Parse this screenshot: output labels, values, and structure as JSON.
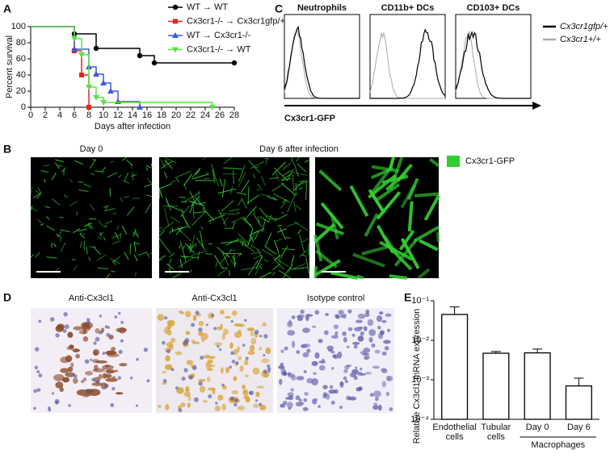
{
  "panel_labels": [
    "A",
    "B",
    "C",
    "D",
    "E"
  ],
  "chart_data": [
    {
      "type": "step",
      "y_label": "Percent survival",
      "x_label": "Days after infection",
      "xlim": [
        0,
        28
      ],
      "xticks": [
        0,
        2,
        4,
        6,
        8,
        10,
        12,
        14,
        16,
        18,
        20,
        22,
        24,
        26,
        28
      ],
      "ylim": [
        0,
        100
      ],
      "yticks": [
        0,
        20,
        40,
        60,
        80,
        100
      ],
      "series": [
        {
          "name": "WT → WT",
          "color": "#000000",
          "marker": "circle",
          "x": [
            0,
            6,
            9,
            15,
            17,
            28
          ],
          "values": [
            100,
            91,
            73,
            64,
            55,
            55
          ]
        },
        {
          "name": "Cx3cr1-/- → Cx3cr1gfp/+",
          "color": "#e8231c",
          "marker": "square",
          "x": [
            0,
            6,
            7,
            8
          ],
          "values": [
            100,
            70,
            40,
            0
          ]
        },
        {
          "name": "WT → Cx3cr1-/-",
          "color": "#3a5bd9",
          "marker": "triangle",
          "x": [
            0,
            6,
            8,
            9,
            10,
            11,
            12,
            15
          ],
          "values": [
            100,
            72,
            50,
            41,
            30,
            20,
            7,
            0
          ]
        },
        {
          "name": "Cx3cr1-/- → WT",
          "color": "#5fe04a",
          "marker": "triangle-down",
          "x": [
            0,
            6,
            7,
            8,
            9,
            10,
            25
          ],
          "values": [
            100,
            85,
            65,
            25,
            12,
            6,
            0
          ]
        }
      ]
    },
    {
      "type": "bar",
      "y_label": "Relative Cx3cl1 mRNA expression",
      "log": true,
      "color": "#ffffff",
      "categories": [
        "Endothelial cells",
        "Tubular cells",
        "Day 0",
        "Day 6"
      ],
      "group_label": "Macrophages",
      "values": [
        0.045,
        0.0047,
        0.0048,
        0.0007
      ],
      "errors": [
        0.025,
        0.0005,
        0.0012,
        0.0004
      ],
      "ylim": [
        0.0001,
        0.1
      ],
      "yticks": [
        {
          "value": 0.0001,
          "label": "10⁻⁴"
        },
        {
          "value": 0.001,
          "label": "10⁻³"
        },
        {
          "value": 0.01,
          "label": "10⁻²"
        },
        {
          "value": 0.1,
          "label": "10⁻¹"
        }
      ]
    }
  ],
  "flow": {
    "titles": [
      "Neutrophils",
      "CD11b+ DCs",
      "CD103+ DCs"
    ],
    "axis_label": "Cx3cr1-GFP",
    "legend": [
      {
        "name": "Cx3cr1gfp/+",
        "color": "#000000"
      },
      {
        "name": "Cx3cr1+/+",
        "color": "#aaaaaa"
      }
    ]
  },
  "imaging": {
    "titles": [
      "Day 0",
      "Day 6 after infection"
    ],
    "legend": "Cx3cr1-GFP",
    "legend_color": "#33cc33"
  },
  "staining": {
    "titles": [
      "Anti-Cx3cl1",
      "Anti-Cx3cl1",
      "Isotype control"
    ]
  }
}
